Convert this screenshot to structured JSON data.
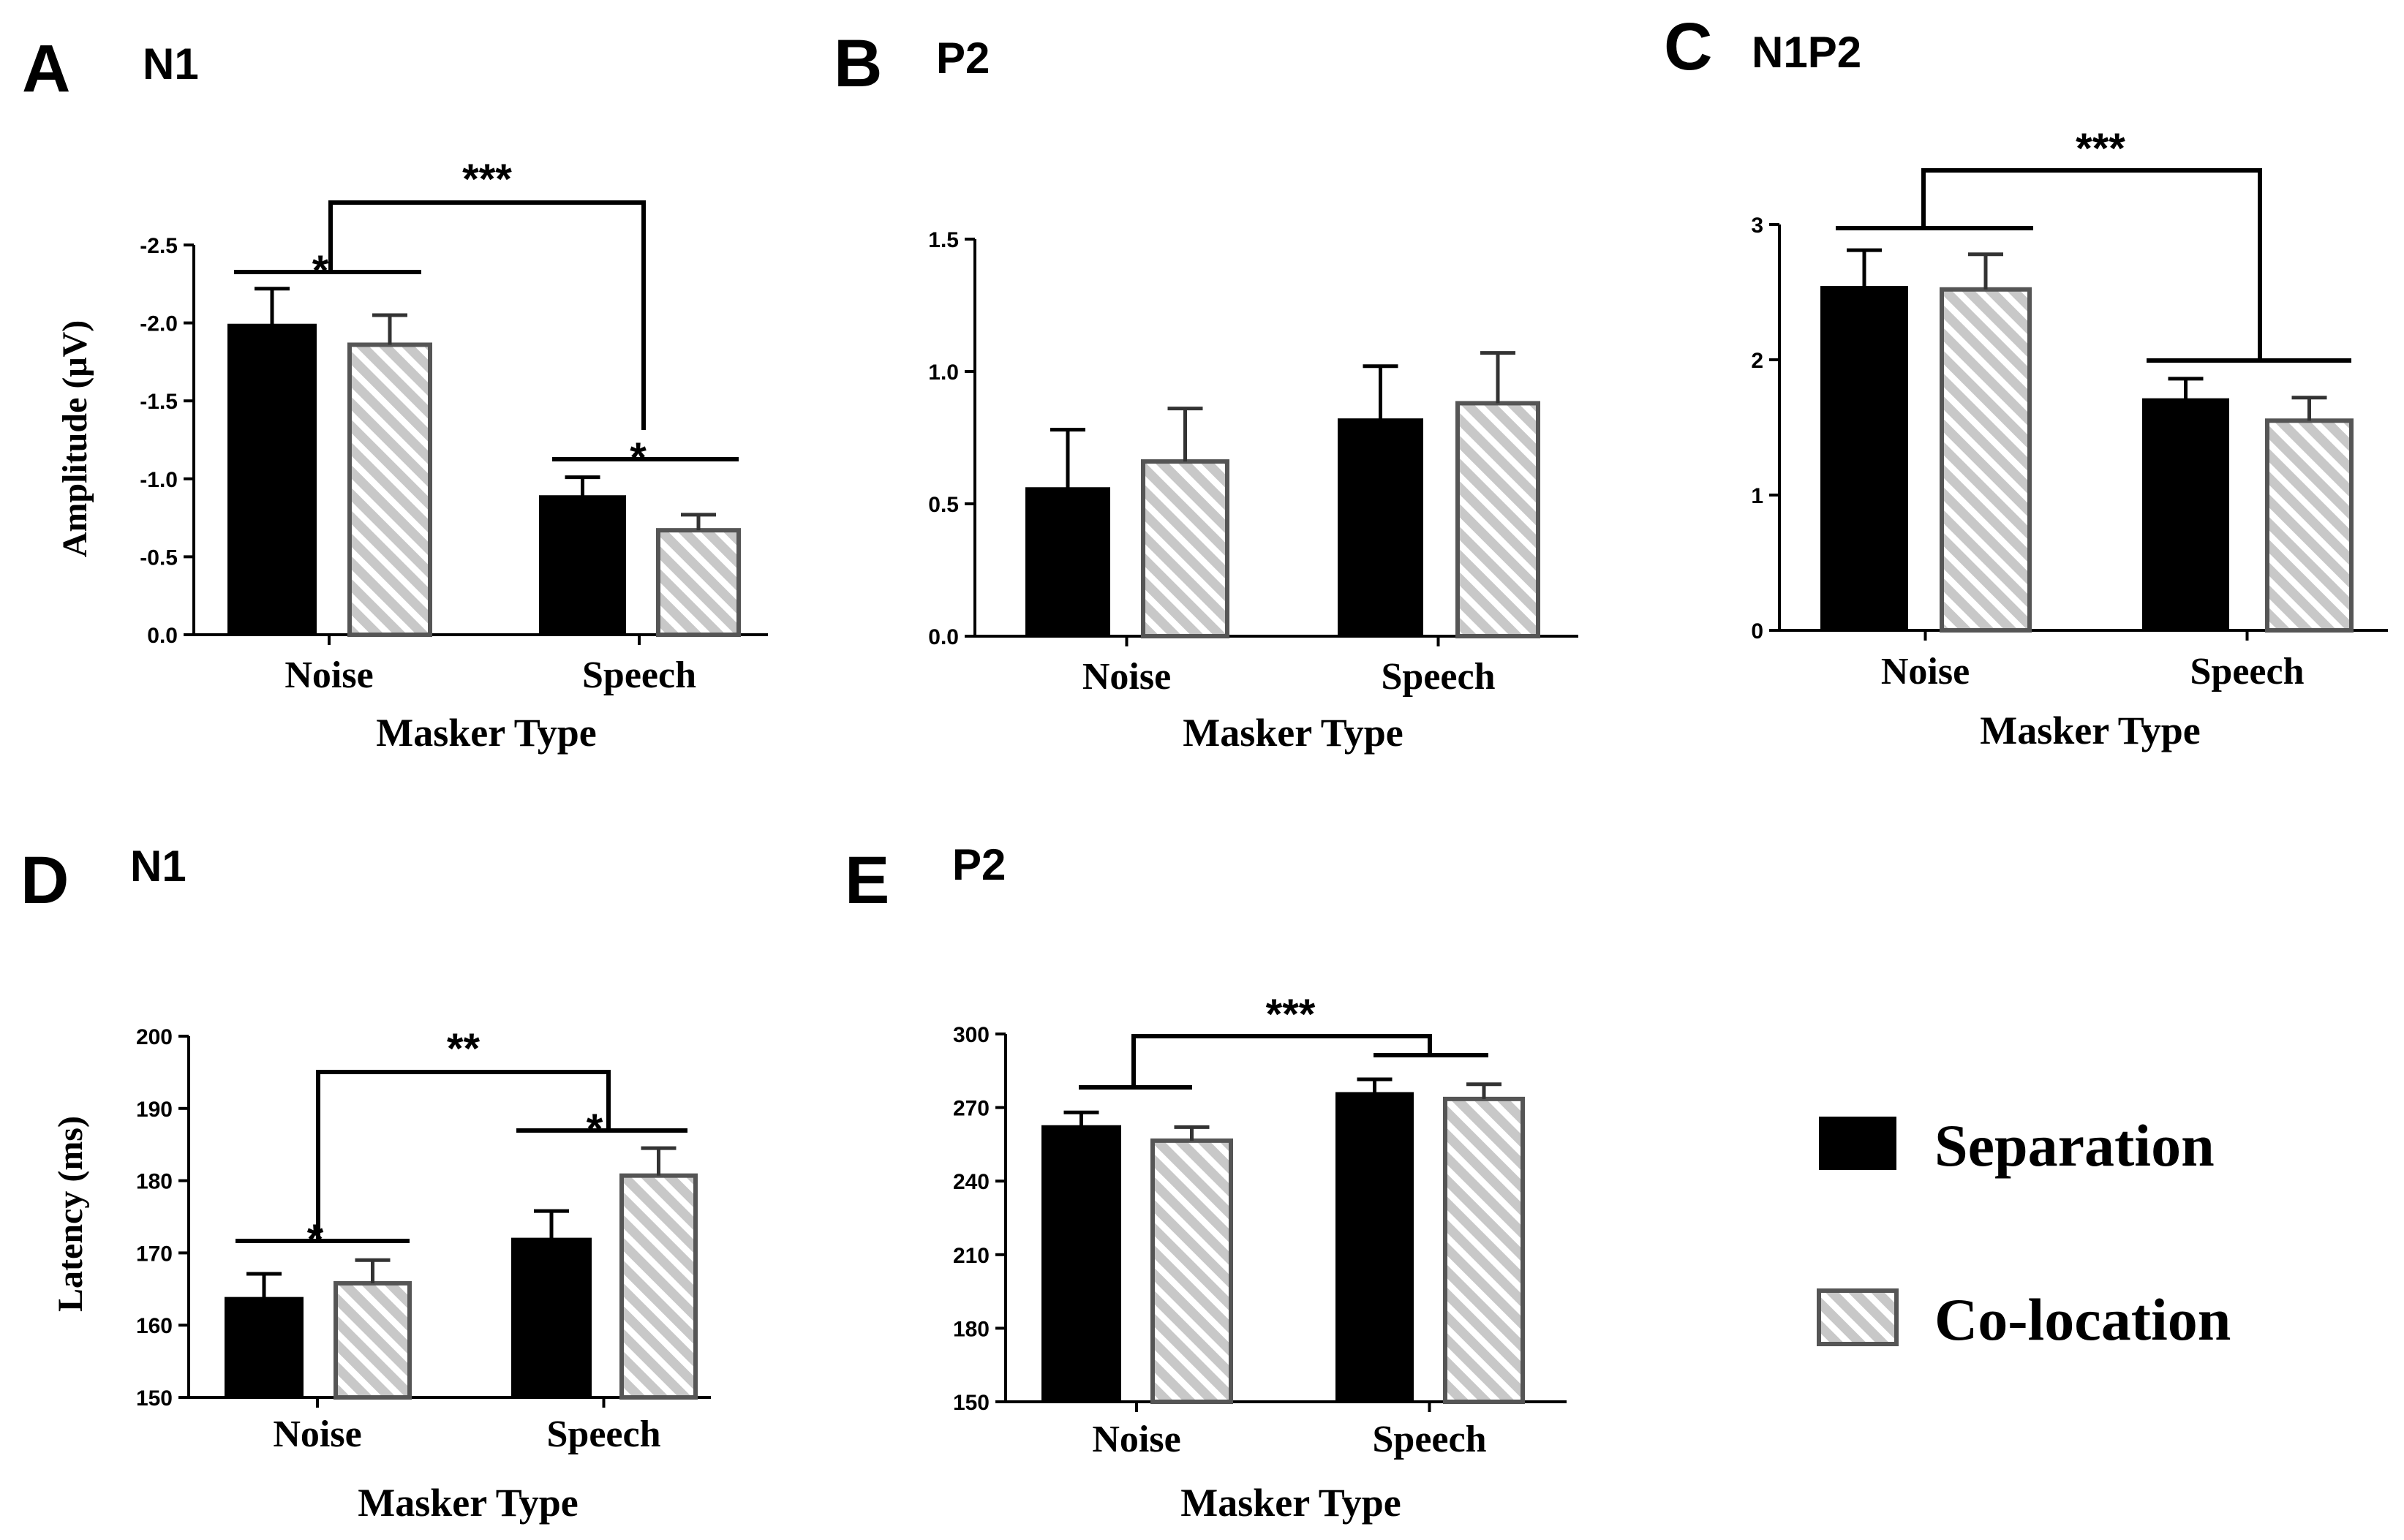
{
  "legend": {
    "series": [
      {
        "name": "Separation",
        "fill": "#000000"
      },
      {
        "name": "Co-location",
        "fill": "#c8c8c8",
        "pattern": "diagonal-hatch"
      }
    ]
  },
  "colors": {
    "separation": "#000000",
    "colocation_fill": "#c8c8c8",
    "colocation_stroke": "#555555",
    "colocation_hatch": "#ffffff"
  },
  "chart_data": [
    {
      "id": "A",
      "type": "bar",
      "letter": "A",
      "title": "N1",
      "categories": [
        "Noise",
        "Speech"
      ],
      "xlabel": "Masker Type",
      "ylabel": "Amplitude (μV)",
      "ylim": [
        0,
        -2.5
      ],
      "inverted_axis": true,
      "ticks": [
        0.0,
        -0.5,
        -1.0,
        -1.5,
        -2.0,
        -2.5
      ],
      "tick_labels": [
        "0.0",
        "-0.5",
        "-1.0",
        "-1.5",
        "-2.0",
        "-2.5"
      ],
      "series": [
        {
          "name": "Separation",
          "values": [
            -1.99,
            -0.89
          ],
          "errors": [
            0.23,
            0.12
          ]
        },
        {
          "name": "Co-location",
          "values": [
            -1.86,
            -0.67
          ],
          "errors": [
            0.19,
            0.1
          ]
        }
      ],
      "annotations": [
        {
          "label": "*",
          "type": "pair",
          "category": 0
        },
        {
          "label": "*",
          "type": "pair",
          "category": 1
        },
        {
          "label": "***",
          "type": "cross",
          "from": 0,
          "to": 1
        }
      ]
    },
    {
      "id": "B",
      "type": "bar",
      "letter": "B",
      "title": "P2",
      "categories": [
        "Noise",
        "Speech"
      ],
      "xlabel": "Masker Type",
      "ylabel": "",
      "ylim": [
        0,
        1.5
      ],
      "ticks": [
        0.0,
        0.5,
        1.0,
        1.5
      ],
      "tick_labels": [
        "0.0",
        "0.5",
        "1.0",
        "1.5"
      ],
      "series": [
        {
          "name": "Separation",
          "values": [
            0.56,
            0.82
          ],
          "errors": [
            0.22,
            0.2
          ]
        },
        {
          "name": "Co-location",
          "values": [
            0.66,
            0.88
          ],
          "errors": [
            0.2,
            0.19
          ]
        }
      ],
      "annotations": []
    },
    {
      "id": "C",
      "type": "bar",
      "letter": "C",
      "title": "N1P2",
      "categories": [
        "Noise",
        "Speech"
      ],
      "xlabel": "Masker Type",
      "ylabel": "",
      "ylim": [
        0,
        3
      ],
      "ticks": [
        0,
        1,
        2,
        3
      ],
      "tick_labels": [
        "0",
        "1",
        "2",
        "3"
      ],
      "series": [
        {
          "name": "Separation",
          "values": [
            2.54,
            1.71
          ],
          "errors": [
            0.27,
            0.15
          ]
        },
        {
          "name": "Co-location",
          "values": [
            2.52,
            1.55
          ],
          "errors": [
            0.26,
            0.17
          ]
        }
      ],
      "annotations": [
        {
          "label": "***",
          "type": "group",
          "from": 0,
          "to": 1
        }
      ]
    },
    {
      "id": "D",
      "type": "bar",
      "letter": "D",
      "title": "N1",
      "categories": [
        "Noise",
        "Speech"
      ],
      "xlabel": "Masker Type",
      "ylabel": "Latency (ms)",
      "ylim": [
        150,
        200
      ],
      "ticks": [
        150,
        160,
        170,
        180,
        190,
        200
      ],
      "tick_labels": [
        "150",
        "160",
        "170",
        "180",
        "190",
        "200"
      ],
      "series": [
        {
          "name": "Separation",
          "values": [
            163.8,
            172.0
          ],
          "errors": [
            3.3,
            3.8
          ]
        },
        {
          "name": "Co-location",
          "values": [
            165.8,
            180.7
          ],
          "errors": [
            3.2,
            3.8
          ]
        }
      ],
      "annotations": [
        {
          "label": "*",
          "type": "pair",
          "category": 0
        },
        {
          "label": "*",
          "type": "pair",
          "category": 1
        },
        {
          "label": "**",
          "type": "cross",
          "from": 0,
          "to": 1
        }
      ]
    },
    {
      "id": "E",
      "type": "bar",
      "letter": "E",
      "title": "P2",
      "categories": [
        "Noise",
        "Speech"
      ],
      "xlabel": "Masker Type",
      "ylabel": "",
      "ylim": [
        150,
        300
      ],
      "ticks": [
        150,
        180,
        210,
        240,
        270,
        300
      ],
      "tick_labels": [
        "150",
        "180",
        "210",
        "240",
        "270",
        "300"
      ],
      "series": [
        {
          "name": "Separation",
          "values": [
            262.5,
            276.0
          ],
          "errors": [
            5.5,
            5.5
          ]
        },
        {
          "name": "Co-location",
          "values": [
            256.5,
            273.5
          ],
          "errors": [
            5.5,
            6.0
          ]
        }
      ],
      "annotations": [
        {
          "label": "***",
          "type": "group",
          "from": 0,
          "to": 1
        }
      ]
    }
  ]
}
